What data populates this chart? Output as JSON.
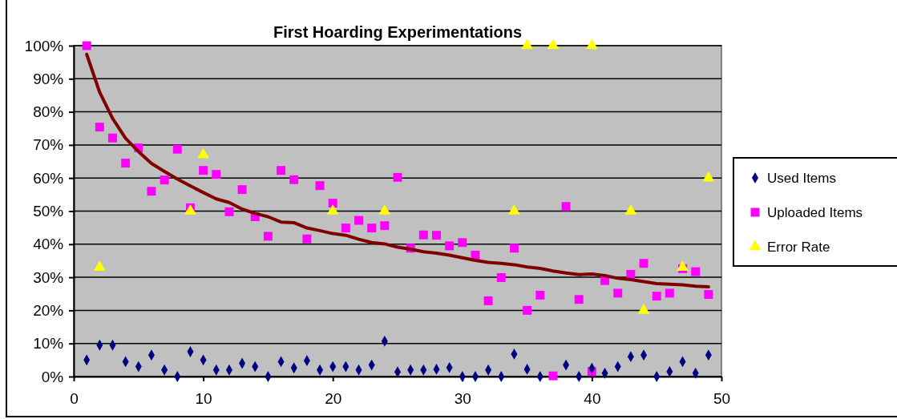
{
  "chart_data": {
    "type": "scatter",
    "title": "First Hoarding Experimentations",
    "xlim": [
      0,
      50
    ],
    "xticks": [
      0,
      10,
      20,
      30,
      40,
      50
    ],
    "ylim": [
      0,
      100
    ],
    "yticks": [
      {
        "value": 0,
        "label": "0%"
      },
      {
        "value": 10,
        "label": "10%"
      },
      {
        "value": 20,
        "label": "20%"
      },
      {
        "value": 30,
        "label": "30%"
      },
      {
        "value": 40,
        "label": "40%"
      },
      {
        "value": 50,
        "label": "50%"
      },
      {
        "value": 60,
        "label": "60%"
      },
      {
        "value": 70,
        "label": "70%"
      },
      {
        "value": 80,
        "label": "80%"
      },
      {
        "value": 90,
        "label": "90%"
      },
      {
        "value": 100,
        "label": "100%"
      }
    ],
    "grid": "y",
    "legend": "right",
    "series": [
      {
        "name": "Used Items",
        "color": "#000080",
        "marker": "diamond",
        "x": [
          1,
          2,
          3,
          4,
          5,
          6,
          7,
          8,
          9,
          10,
          11,
          12,
          13,
          14,
          15,
          16,
          17,
          18,
          19,
          20,
          21,
          22,
          23,
          24,
          25,
          26,
          27,
          28,
          29,
          30,
          31,
          32,
          33,
          34,
          35,
          36,
          37,
          38,
          39,
          40,
          41,
          42,
          43,
          44,
          45,
          46,
          47,
          48,
          49
        ],
        "values": [
          5,
          9.5,
          9.5,
          4.5,
          3,
          6.5,
          2,
          0,
          7.5,
          5,
          2,
          2,
          4,
          3,
          0,
          4.5,
          2.6,
          4.8,
          2,
          3,
          3,
          2,
          3.5,
          10.7,
          1.4,
          2,
          2,
          2.2,
          2.7,
          0,
          0,
          2,
          0,
          6.8,
          2.2,
          0,
          null,
          3.5,
          0,
          2.5,
          1,
          3,
          6,
          6.5,
          0,
          1.5,
          4.5,
          1,
          6.5
        ]
      },
      {
        "name": "Uploaded Items",
        "color": "#ff00ff",
        "marker": "square",
        "x": [
          1,
          2,
          3,
          4,
          5,
          6,
          7,
          8,
          9,
          10,
          11,
          12,
          13,
          14,
          15,
          16,
          17,
          18,
          19,
          20,
          21,
          22,
          23,
          24,
          25,
          26,
          27,
          28,
          29,
          30,
          31,
          32,
          33,
          34,
          35,
          36,
          37,
          38,
          39,
          40,
          41,
          42,
          43,
          44,
          45,
          46,
          47,
          48,
          49
        ],
        "values": [
          100,
          75.4,
          72.1,
          64.5,
          69.1,
          56,
          59.4,
          68.7,
          51,
          62.3,
          61.1,
          49.8,
          56.5,
          48.3,
          42.4,
          62.3,
          59.5,
          41.6,
          57.7,
          52.4,
          44.9,
          47.2,
          44.9,
          45.6,
          60.2,
          38.8,
          42.8,
          42.7,
          39.5,
          40.5,
          36.7,
          22.9,
          29.9,
          38.8,
          20,
          24.6,
          0.2,
          51.4,
          23.3,
          1.5,
          29,
          25.2,
          30.9,
          34.2,
          24.3,
          25.2,
          32.6,
          31.7,
          24.8
        ]
      },
      {
        "name": "Error Rate",
        "color": "#ffff00",
        "marker": "triangle",
        "x": [
          2,
          9,
          10,
          20,
          24,
          34,
          35,
          37,
          40,
          43,
          44,
          47,
          49
        ],
        "values": [
          33,
          50,
          67,
          50,
          50,
          50,
          100,
          100,
          100,
          50,
          20,
          33,
          60
        ]
      },
      {
        "type": "line",
        "color": "#800000",
        "marker": "none",
        "x": [
          1,
          2,
          3,
          4,
          5,
          6,
          7,
          8,
          9,
          10,
          11,
          12,
          13,
          14,
          15,
          16,
          17,
          18,
          19,
          20,
          21,
          22,
          23,
          24,
          25,
          26,
          27,
          28,
          29,
          30,
          31,
          32,
          33,
          34,
          35,
          36,
          37,
          38,
          39,
          40,
          41,
          42,
          43,
          44,
          45,
          46,
          47,
          48,
          49
        ],
        "values": [
          97.4,
          85.9,
          78,
          72,
          68,
          64.4,
          62,
          59.7,
          57.6,
          55.6,
          53.7,
          52.6,
          50.6,
          49.3,
          48.3,
          46.7,
          46.5,
          44.9,
          44.1,
          43.2,
          42.7,
          41.5,
          40.5,
          40.1,
          39.1,
          38.5,
          37.7,
          37.3,
          36.7,
          35.9,
          35.1,
          34.5,
          34.2,
          33.8,
          33.1,
          32.7,
          31.9,
          31.3,
          30.8,
          31,
          30.5,
          29.7,
          29.3,
          28.7,
          28.1,
          27.9,
          27.7,
          27.3,
          27.1
        ]
      }
    ]
  }
}
